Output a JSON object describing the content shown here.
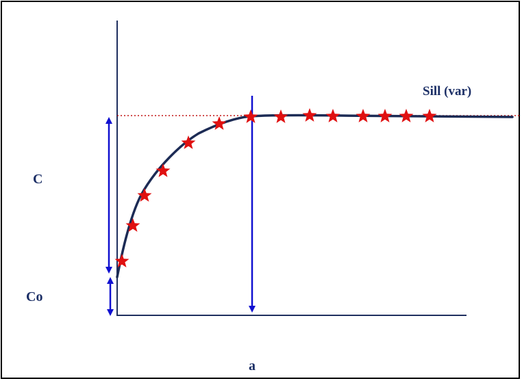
{
  "labels": {
    "sill": "Sill (var)",
    "c": "C",
    "co": "Co",
    "a": "a"
  },
  "colors": {
    "axis": "#1f2f5f",
    "curve": "#1c2b55",
    "arrow": "#1010d0",
    "sill_line": "#c01010",
    "star": "#e01010",
    "label": "#1c2f66"
  }
}
